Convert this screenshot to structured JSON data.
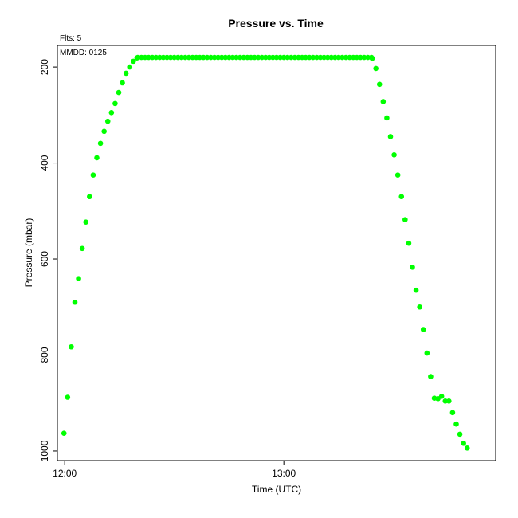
{
  "chart_data": {
    "type": "scatter",
    "title": "Pressure  vs. Time",
    "flights_label": "Flts: 5",
    "date_label": "MMDD: 0125",
    "xlabel": "Time (UTC)",
    "ylabel": "Pressure (mbar)",
    "x_unit": "minutes",
    "xlim": [
      "11:58",
      "13:58"
    ],
    "ylim": [
      1020,
      155
    ],
    "y_reversed": true,
    "x_ticks": [
      {
        "value": "12:00",
        "label": "12:00"
      },
      {
        "value": "13:00",
        "label": "13:00"
      }
    ],
    "y_ticks": [
      200,
      400,
      600,
      800,
      1000
    ],
    "grid": false,
    "series": [
      {
        "color": "#00ff00",
        "points": [
          [
            "11:59:48",
            963
          ],
          [
            "11:60:48",
            888
          ],
          [
            "12:01:48",
            783
          ],
          [
            "12:02:48",
            690
          ],
          [
            "12:03:48",
            641
          ],
          [
            "12:04:48",
            578
          ],
          [
            "12:05:48",
            523
          ],
          [
            "12:06:48",
            470
          ],
          [
            "12:07:48",
            425
          ],
          [
            "12:08:48",
            389
          ],
          [
            "12:09:48",
            359
          ],
          [
            "12:10:48",
            334
          ],
          [
            "12:11:48",
            313
          ],
          [
            "12:12:48",
            295
          ],
          [
            "12:13:48",
            276
          ],
          [
            "12:14:48",
            253
          ],
          [
            "12:15:48",
            233
          ],
          [
            "12:16:48",
            213
          ],
          [
            "12:17:48",
            200
          ],
          [
            "12:18:48",
            188
          ],
          [
            "12:19:48",
            181
          ],
          [
            "13:24:12",
            182
          ],
          [
            "13:25:12",
            203
          ],
          [
            "13:26:12",
            236
          ],
          [
            "13:27:12",
            272
          ],
          [
            "13:28:12",
            306
          ],
          [
            "13:29:12",
            345
          ],
          [
            "13:30:12",
            383
          ],
          [
            "13:31:12",
            425
          ],
          [
            "13:32:12",
            470
          ],
          [
            "13:33:12",
            518
          ],
          [
            "13:34:12",
            567
          ],
          [
            "13:35:12",
            617
          ],
          [
            "13:36:12",
            665
          ],
          [
            "13:37:12",
            700
          ],
          [
            "13:38:12",
            747
          ],
          [
            "13:39:12",
            796
          ],
          [
            "13:40:12",
            845
          ],
          [
            "13:41:12",
            890
          ],
          [
            "13:42:12",
            891
          ],
          [
            "13:43:12",
            886
          ],
          [
            "13:44:12",
            896
          ],
          [
            "13:45:12",
            896
          ],
          [
            "13:46:12",
            920
          ],
          [
            "13:47:12",
            944
          ],
          [
            "13:48:12",
            965
          ],
          [
            "13:49:12",
            984
          ],
          [
            "13:50:12",
            994
          ]
        ],
        "plateau": {
          "start": "12:20:00",
          "end": "13:24:00",
          "step_seconds": 60,
          "value": 180
        }
      }
    ]
  }
}
